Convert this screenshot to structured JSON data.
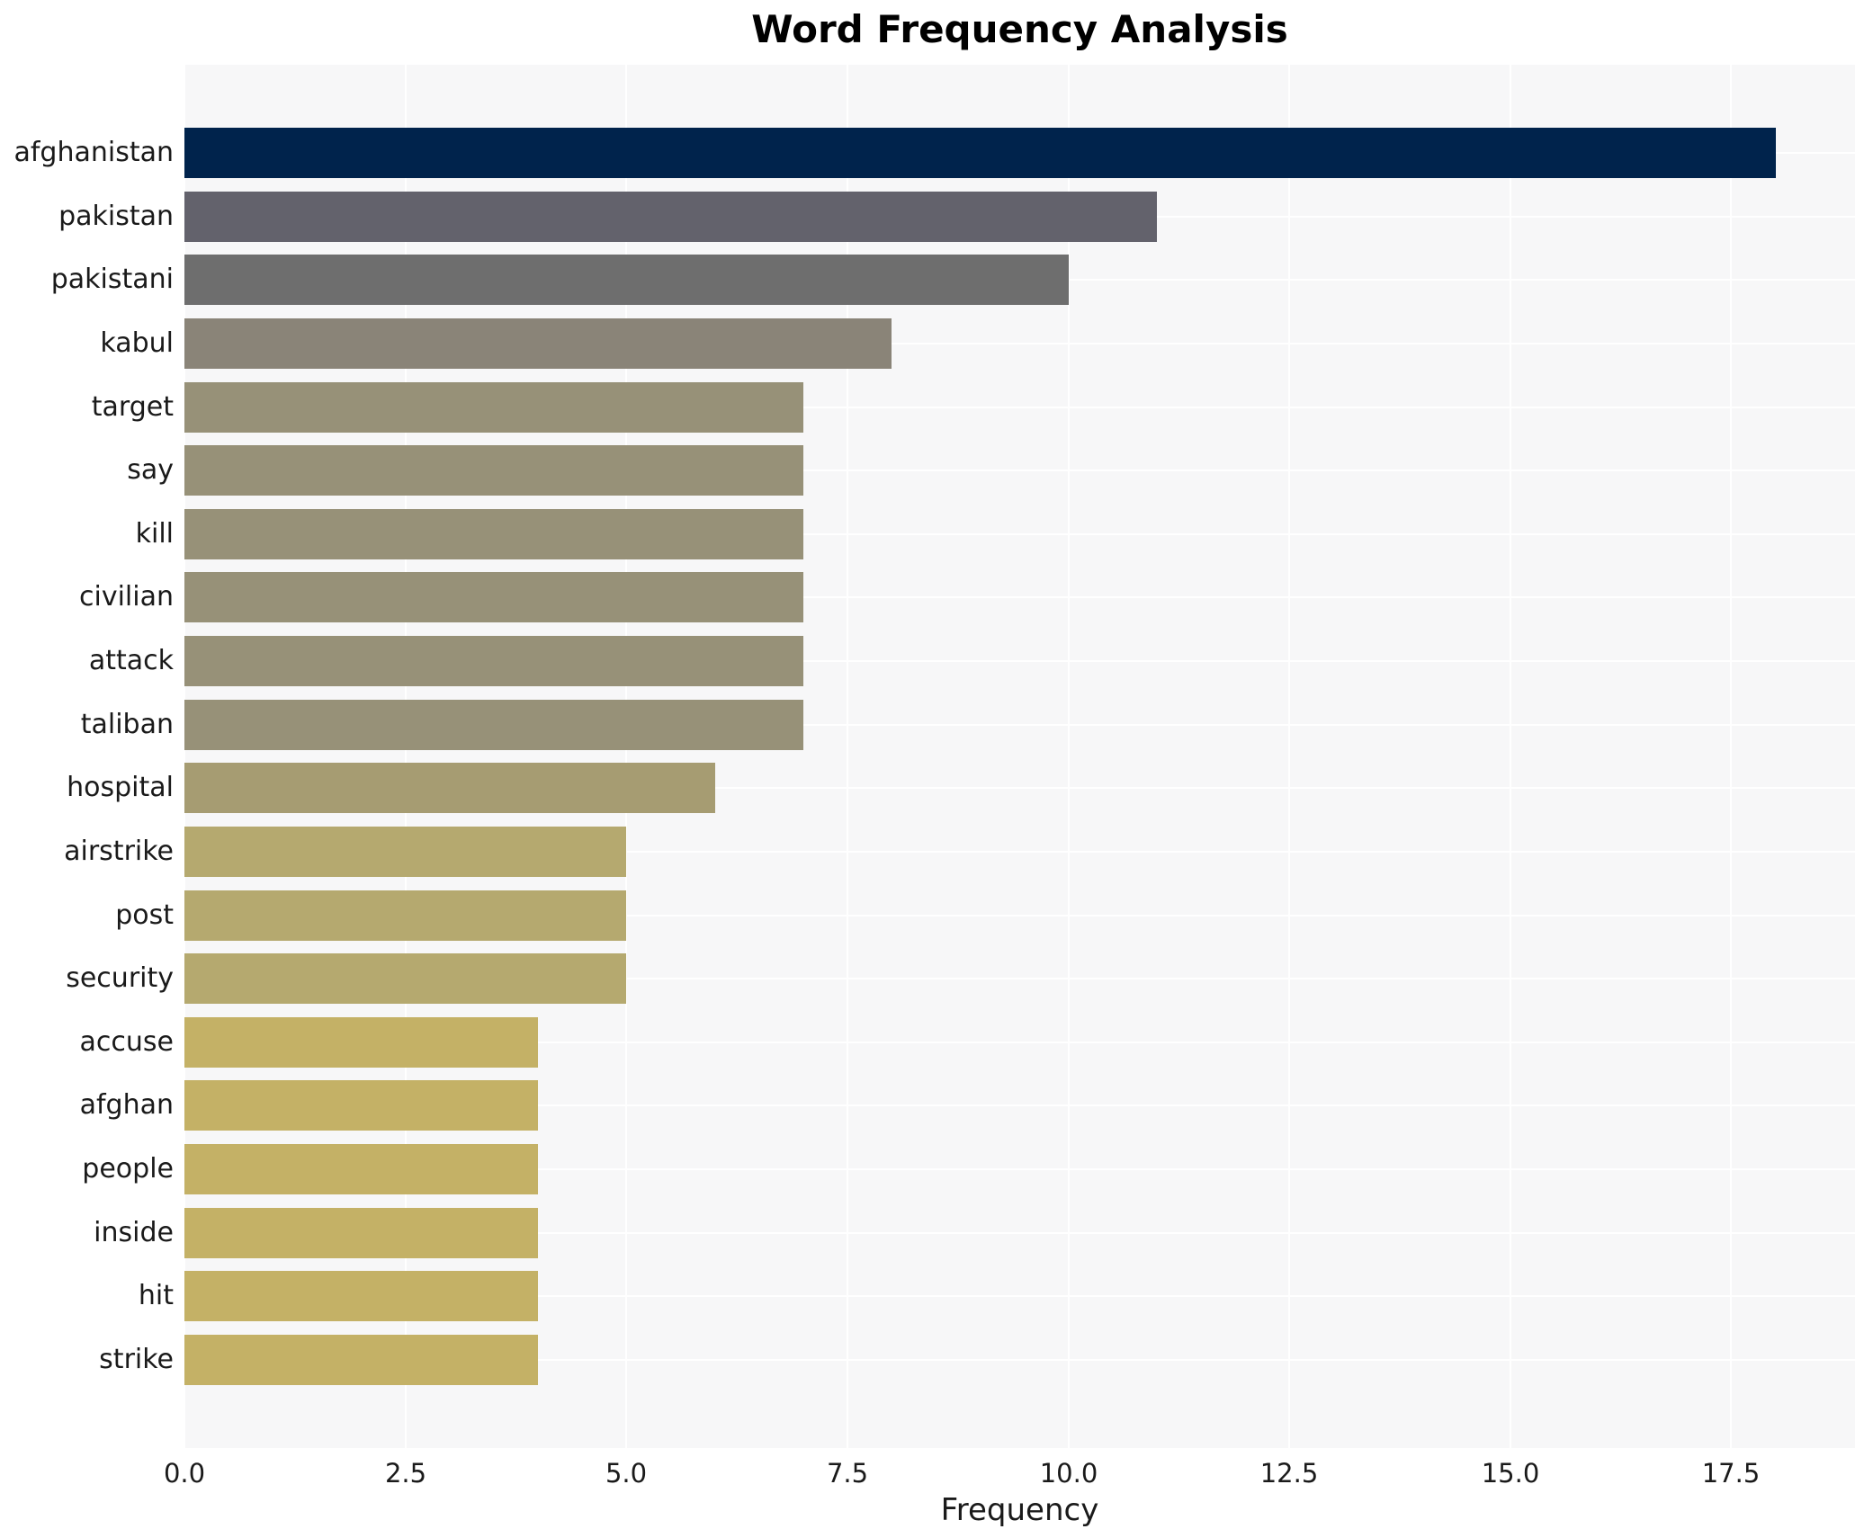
{
  "title": "Word Frequency Analysis",
  "chart_data": {
    "type": "bar",
    "orientation": "horizontal",
    "title": "Word Frequency Analysis",
    "xlabel": "Frequency",
    "ylabel": "",
    "categories": [
      "afghanistan",
      "pakistan",
      "pakistani",
      "kabul",
      "target",
      "say",
      "kill",
      "civilian",
      "attack",
      "taliban",
      "hospital",
      "airstrike",
      "post",
      "security",
      "accuse",
      "afghan",
      "people",
      "inside",
      "hit",
      "strike"
    ],
    "values": [
      18,
      11,
      10,
      8,
      7,
      7,
      7,
      7,
      7,
      7,
      6,
      5,
      5,
      5,
      4,
      4,
      4,
      4,
      4,
      4
    ],
    "bar_colors": [
      "#00234c",
      "#63626c",
      "#6e6e6e",
      "#8a8478",
      "#979178",
      "#979178",
      "#979178",
      "#979178",
      "#979178",
      "#979178",
      "#a69c72",
      "#b5a96f",
      "#b5a96f",
      "#b5a96f",
      "#c4b166",
      "#c4b166",
      "#c4b166",
      "#c4b166",
      "#c4b166",
      "#c4b166"
    ],
    "xlim": [
      0,
      18.9
    ],
    "xticks": [
      0,
      2.5,
      5,
      7.5,
      10,
      12.5,
      15,
      17.5
    ],
    "xtick_labels": [
      "0.0",
      "2.5",
      "5.0",
      "7.5",
      "10.0",
      "12.5",
      "15.0",
      "17.5"
    ],
    "grid": true,
    "legend": false,
    "plot_bg_color": "#f7f7f8",
    "grid_color": "#ffffff",
    "text_color": "#1a1a1a"
  }
}
